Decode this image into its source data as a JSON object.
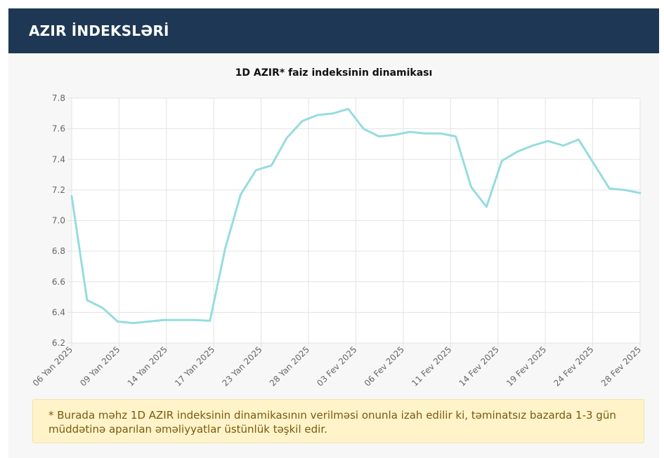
{
  "header": {
    "title": "AZIR İNDEKSLƏRİ"
  },
  "chart_data": {
    "type": "line",
    "title": "1D AZIR* faiz indeksinin dinamikası",
    "xlabel": "",
    "ylabel": "",
    "ylim": [
      6.2,
      7.8
    ],
    "yticks": [
      "7.8",
      "7.6",
      "7.4",
      "7.2",
      "7.0",
      "6.8",
      "6.6",
      "6.4",
      "6.2"
    ],
    "xticks": [
      "06 Yan 2025",
      "09 Yan 2025",
      "14 Yan 2025",
      "17 Yan 2025",
      "23 Yan 2025",
      "28 Yan 2025",
      "03 Fev 2025",
      "06 Fev 2025",
      "11 Fev 2025",
      "14 Fev 2025",
      "19 Fev 2025",
      "24 Fev 2025",
      "28 Fev 2025"
    ],
    "grid": true,
    "line_color": "#96dcdf",
    "series": [
      {
        "name": "1D AZIR",
        "values": [
          7.16,
          6.48,
          6.43,
          6.34,
          6.33,
          6.34,
          6.35,
          6.35,
          6.35,
          6.345,
          6.82,
          7.17,
          7.33,
          7.36,
          7.54,
          7.65,
          7.69,
          7.7,
          7.73,
          7.6,
          7.55,
          7.56,
          7.58,
          7.57,
          7.57,
          7.55,
          7.22,
          7.09,
          7.39,
          7.45,
          7.49,
          7.52,
          7.49,
          7.53,
          7.37,
          7.21,
          7.2,
          7.18
        ]
      }
    ]
  },
  "note": {
    "text": "* Burada məhz 1D AZIR indeksinin dinamikasının verilməsi onunla izah edilir ki, təminatsız bazarda 1-3 gün müddətinə aparılan əməliyyatlar üstünlük təşkil edir."
  }
}
